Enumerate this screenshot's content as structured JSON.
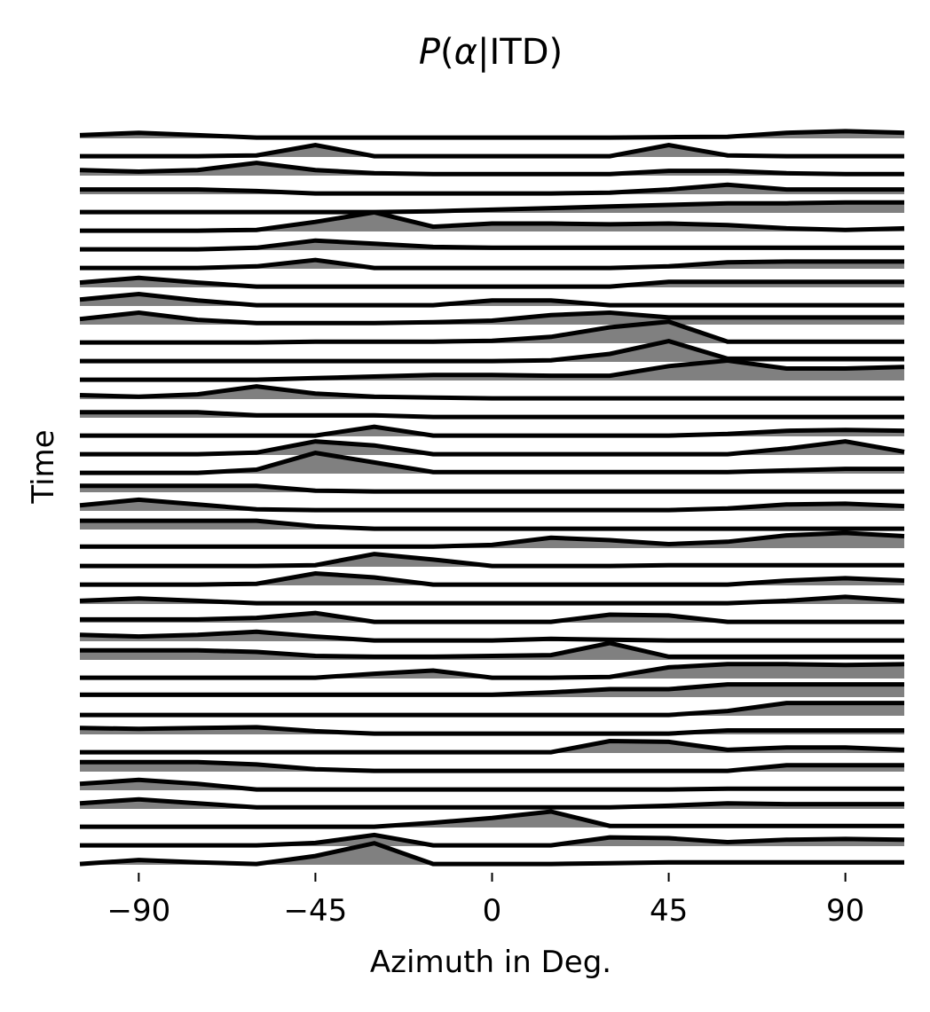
{
  "chart_data": {
    "type": "area",
    "title_parts": [
      "P",
      "(",
      "α",
      "|ITD)"
    ],
    "xlabel": "Azimuth in Deg.",
    "ylabel": "Time",
    "x": [
      -105,
      -90,
      -75,
      -60,
      -45,
      -30,
      -15,
      0,
      15,
      30,
      45,
      60,
      75,
      90,
      105
    ],
    "xlim": [
      -105,
      105
    ],
    "xticks": [
      -90,
      -45,
      0,
      45,
      90
    ],
    "xtick_labels": [
      "−90",
      "−45",
      "0",
      "45",
      "90"
    ],
    "yticks_visible": false,
    "grid": false,
    "fill_color": "#808080",
    "line_color": "#000000",
    "series": [
      {
        "values": [
          0.2,
          0.35,
          0.2,
          0.05,
          0.05,
          0.05,
          0.05,
          0.05,
          0.05,
          0.05,
          0.08,
          0.1,
          0.35,
          0.45,
          0.35
        ]
      },
      {
        "values": [
          0.05,
          0.05,
          0.05,
          0.1,
          0.75,
          0.05,
          0.05,
          0.05,
          0.05,
          0.05,
          0.75,
          0.1,
          0.05,
          0.05,
          0.05
        ]
      },
      {
        "values": [
          0.35,
          0.25,
          0.35,
          0.8,
          0.35,
          0.15,
          0.1,
          0.1,
          0.1,
          0.1,
          0.3,
          0.3,
          0.15,
          0.1,
          0.1
        ]
      },
      {
        "values": [
          0.3,
          0.3,
          0.3,
          0.2,
          0.05,
          0.05,
          0.05,
          0.05,
          0.05,
          0.1,
          0.3,
          0.6,
          0.3,
          0.3,
          0.3
        ]
      },
      {
        "values": [
          0.05,
          0.05,
          0.05,
          0.05,
          0.05,
          0.05,
          0.1,
          0.2,
          0.3,
          0.4,
          0.5,
          0.6,
          0.6,
          0.65,
          0.65
        ]
      },
      {
        "values": [
          0.05,
          0.05,
          0.05,
          0.1,
          0.6,
          1.2,
          0.3,
          0.5,
          0.5,
          0.45,
          0.5,
          0.4,
          0.2,
          0.1,
          0.2
        ]
      },
      {
        "values": [
          0.05,
          0.05,
          0.05,
          0.15,
          0.6,
          0.4,
          0.2,
          0.15,
          0.15,
          0.15,
          0.15,
          0.15,
          0.15,
          0.15,
          0.15
        ]
      },
      {
        "values": [
          0.05,
          0.05,
          0.05,
          0.15,
          0.55,
          0.05,
          0.05,
          0.05,
          0.05,
          0.05,
          0.15,
          0.4,
          0.45,
          0.45,
          0.45
        ]
      },
      {
        "values": [
          0.3,
          0.6,
          0.3,
          0.05,
          0.05,
          0.05,
          0.05,
          0.05,
          0.05,
          0.05,
          0.35,
          0.35,
          0.35,
          0.35,
          0.35
        ]
      },
      {
        "values": [
          0.4,
          0.75,
          0.35,
          0.05,
          0.05,
          0.05,
          0.05,
          0.35,
          0.35,
          0.05,
          0.05,
          0.05,
          0.05,
          0.05,
          0.05
        ]
      },
      {
        "values": [
          0.35,
          0.75,
          0.3,
          0.1,
          0.1,
          0.1,
          0.15,
          0.25,
          0.6,
          0.75,
          0.45,
          0.45,
          0.45,
          0.45,
          0.45
        ]
      },
      {
        "values": [
          0.05,
          0.05,
          0.05,
          0.05,
          0.1,
          0.1,
          0.1,
          0.15,
          0.4,
          1.0,
          1.35,
          0.1,
          0.1,
          0.1,
          0.1
        ]
      },
      {
        "values": [
          0.05,
          0.05,
          0.05,
          0.05,
          0.05,
          0.05,
          0.05,
          0.05,
          0.1,
          0.5,
          1.3,
          0.2,
          0.2,
          0.2,
          0.2
        ]
      },
      {
        "values": [
          0.05,
          0.05,
          0.05,
          0.05,
          0.15,
          0.25,
          0.35,
          0.35,
          0.3,
          0.3,
          0.9,
          1.25,
          0.75,
          0.75,
          0.85
        ]
      },
      {
        "values": [
          0.25,
          0.15,
          0.3,
          0.8,
          0.35,
          0.15,
          0.1,
          0.05,
          0.05,
          0.05,
          0.05,
          0.05,
          0.05,
          0.05,
          0.05
        ]
      },
      {
        "values": [
          0.35,
          0.35,
          0.35,
          0.15,
          0.15,
          0.15,
          0.05,
          0.05,
          0.05,
          0.05,
          0.05,
          0.05,
          0.05,
          0.05,
          0.05
        ]
      },
      {
        "values": [
          0.05,
          0.05,
          0.05,
          0.05,
          0.05,
          0.6,
          0.05,
          0.05,
          0.05,
          0.05,
          0.05,
          0.15,
          0.35,
          0.4,
          0.35
        ]
      },
      {
        "values": [
          0.05,
          0.05,
          0.05,
          0.15,
          0.85,
          0.6,
          0.05,
          0.05,
          0.05,
          0.05,
          0.05,
          0.05,
          0.4,
          0.85,
          0.2
        ]
      },
      {
        "values": [
          0.05,
          0.05,
          0.05,
          0.25,
          1.3,
          0.7,
          0.1,
          0.1,
          0.1,
          0.1,
          0.1,
          0.1,
          0.2,
          0.3,
          0.3
        ]
      },
      {
        "values": [
          0.4,
          0.4,
          0.4,
          0.4,
          0.1,
          0.05,
          0.05,
          0.05,
          0.05,
          0.05,
          0.05,
          0.05,
          0.05,
          0.05,
          0.05
        ]
      },
      {
        "values": [
          0.35,
          0.7,
          0.4,
          0.1,
          0.05,
          0.05,
          0.05,
          0.05,
          0.05,
          0.05,
          0.05,
          0.15,
          0.4,
          0.45,
          0.3
        ]
      },
      {
        "values": [
          0.55,
          0.55,
          0.55,
          0.55,
          0.2,
          0.05,
          0.05,
          0.05,
          0.05,
          0.05,
          0.05,
          0.05,
          0.05,
          0.05,
          0.05
        ]
      },
      {
        "values": [
          0.1,
          0.1,
          0.1,
          0.1,
          0.1,
          0.1,
          0.1,
          0.2,
          0.65,
          0.5,
          0.25,
          0.4,
          0.8,
          0.95,
          0.75
        ]
      },
      {
        "values": [
          0.05,
          0.05,
          0.05,
          0.05,
          0.1,
          0.8,
          0.45,
          0.05,
          0.05,
          0.05,
          0.1,
          0.1,
          0.1,
          0.1,
          0.1
        ]
      },
      {
        "values": [
          0.05,
          0.05,
          0.05,
          0.1,
          0.75,
          0.5,
          0.05,
          0.05,
          0.05,
          0.05,
          0.05,
          0.05,
          0.3,
          0.45,
          0.3
        ]
      },
      {
        "values": [
          0.2,
          0.35,
          0.2,
          0.05,
          0.05,
          0.05,
          0.05,
          0.05,
          0.05,
          0.05,
          0.05,
          0.05,
          0.2,
          0.45,
          0.2
        ]
      },
      {
        "values": [
          0.2,
          0.2,
          0.2,
          0.3,
          0.6,
          0.05,
          0.05,
          0.05,
          0.05,
          0.5,
          0.45,
          0.05,
          0.05,
          0.05,
          0.05
        ]
      },
      {
        "values": [
          0.4,
          0.3,
          0.4,
          0.6,
          0.3,
          0.05,
          0.05,
          0.05,
          0.15,
          0.1,
          0.05,
          0.05,
          0.05,
          0.05,
          0.05
        ]
      },
      {
        "values": [
          0.6,
          0.6,
          0.6,
          0.5,
          0.25,
          0.2,
          0.2,
          0.25,
          0.3,
          1.05,
          0.2,
          0.2,
          0.2,
          0.2,
          0.2
        ]
      },
      {
        "values": [
          0.05,
          0.05,
          0.05,
          0.05,
          0.05,
          0.3,
          0.5,
          0.05,
          0.05,
          0.1,
          0.7,
          0.9,
          0.9,
          0.85,
          0.9
        ]
      },
      {
        "values": [
          0.15,
          0.15,
          0.15,
          0.15,
          0.15,
          0.15,
          0.15,
          0.15,
          0.3,
          0.5,
          0.5,
          0.8,
          0.8,
          0.8,
          0.8
        ]
      },
      {
        "values": [
          0.05,
          0.05,
          0.05,
          0.05,
          0.05,
          0.05,
          0.05,
          0.05,
          0.05,
          0.05,
          0.05,
          0.3,
          0.8,
          0.8,
          0.8
        ]
      },
      {
        "values": [
          0.4,
          0.35,
          0.4,
          0.45,
          0.2,
          0.05,
          0.05,
          0.05,
          0.05,
          0.05,
          0.05,
          0.25,
          0.25,
          0.25,
          0.25
        ]
      },
      {
        "values": [
          0.05,
          0.05,
          0.05,
          0.05,
          0.05,
          0.05,
          0.05,
          0.05,
          0.05,
          0.75,
          0.7,
          0.2,
          0.35,
          0.35,
          0.2
        ]
      },
      {
        "values": [
          0.6,
          0.6,
          0.6,
          0.45,
          0.15,
          0.05,
          0.05,
          0.05,
          0.05,
          0.05,
          0.05,
          0.05,
          0.4,
          0.4,
          0.4
        ]
      },
      {
        "values": [
          0.4,
          0.65,
          0.4,
          0.05,
          0.05,
          0.05,
          0.05,
          0.05,
          0.05,
          0.05,
          0.05,
          0.1,
          0.1,
          0.1,
          0.1
        ]
      },
      {
        "values": [
          0.35,
          0.6,
          0.35,
          0.1,
          0.1,
          0.1,
          0.1,
          0.1,
          0.1,
          0.1,
          0.2,
          0.35,
          0.3,
          0.3,
          0.3
        ]
      },
      {
        "values": [
          0.05,
          0.05,
          0.05,
          0.05,
          0.05,
          0.05,
          0.3,
          0.6,
          1.0,
          0.1,
          0.1,
          0.1,
          0.1,
          0.1,
          0.1
        ]
      },
      {
        "values": [
          0.05,
          0.05,
          0.05,
          0.05,
          0.2,
          0.7,
          0.05,
          0.05,
          0.05,
          0.55,
          0.5,
          0.25,
          0.4,
          0.45,
          0.4
        ]
      },
      {
        "values": [
          0.05,
          0.3,
          0.15,
          0.05,
          0.55,
          1.35,
          0.05,
          0.05,
          0.05,
          0.1,
          0.15,
          0.15,
          0.15,
          0.15,
          0.15
        ]
      }
    ]
  }
}
